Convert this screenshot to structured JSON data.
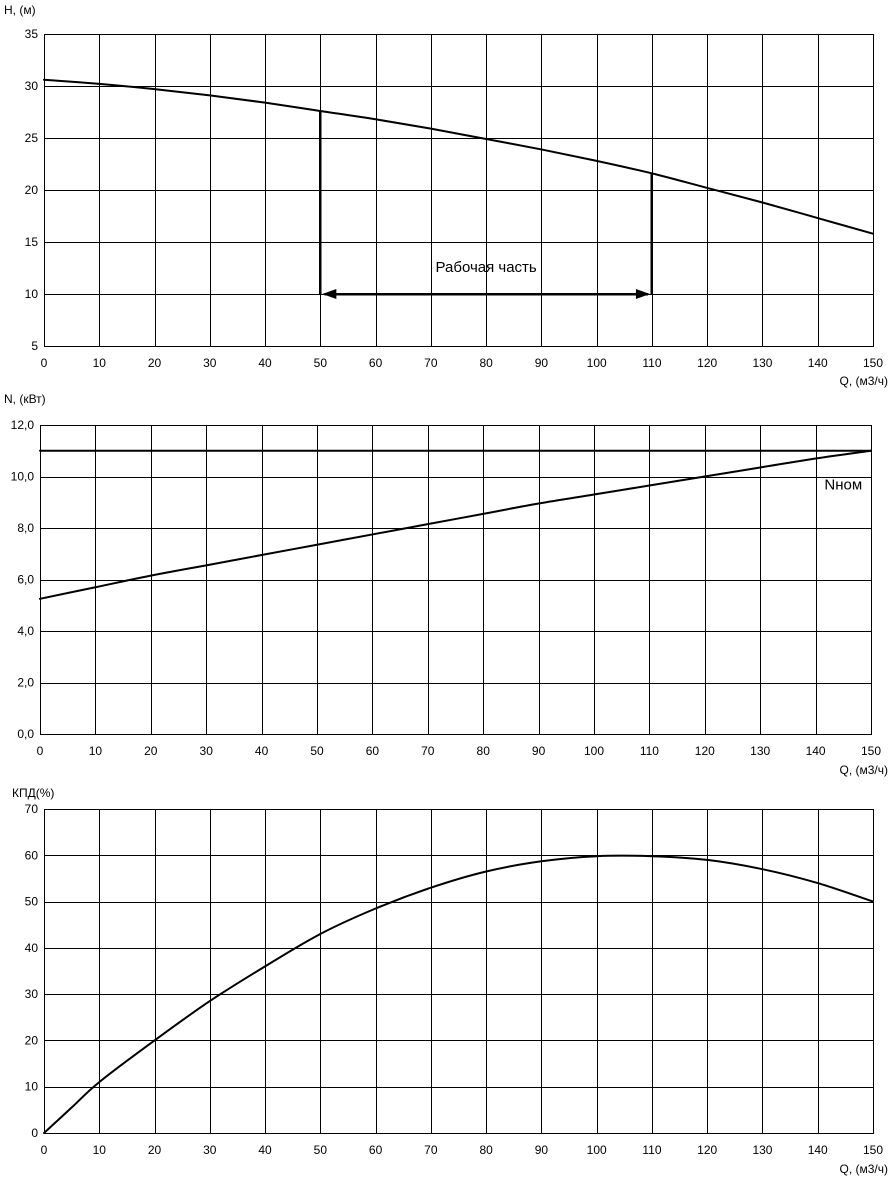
{
  "chart_data": [
    {
      "type": "line",
      "id": "head",
      "xlabel": "Q, (м3/ч)",
      "ylabel": "H, (м)",
      "xlim": [
        0,
        150
      ],
      "ylim": [
        5,
        35
      ],
      "x_ticks": [
        0,
        10,
        20,
        30,
        40,
        50,
        60,
        70,
        80,
        90,
        100,
        110,
        120,
        130,
        140,
        150
      ],
      "y_ticks": [
        5,
        10,
        15,
        20,
        25,
        30,
        35
      ],
      "y_tick_labels": [
        "5",
        "10",
        "15",
        "20",
        "25",
        "30",
        "35"
      ],
      "grid": true,
      "series": [
        {
          "x": [
            0,
            10,
            20,
            30,
            40,
            50,
            60,
            70,
            80,
            90,
            100,
            110,
            120,
            130,
            140,
            150
          ],
          "y": [
            30.6,
            30.2,
            29.7,
            29.1,
            28.4,
            27.6,
            26.8,
            25.9,
            24.9,
            23.9,
            22.8,
            21.6,
            20.2,
            18.8,
            17.3,
            15.8
          ]
        }
      ],
      "working_range": {
        "x_start": 50,
        "x_end": 110,
        "arrow_y": 10,
        "label": "Рабочая часть"
      }
    },
    {
      "type": "line",
      "id": "power",
      "xlabel": "Q, (м3/ч)",
      "ylabel": "N, (кВт)",
      "xlim": [
        0,
        150
      ],
      "ylim": [
        0,
        12
      ],
      "x_ticks": [
        0,
        10,
        20,
        30,
        40,
        50,
        60,
        70,
        80,
        90,
        100,
        110,
        120,
        130,
        140,
        150
      ],
      "y_ticks": [
        0,
        2,
        4,
        6,
        8,
        10,
        12
      ],
      "y_tick_labels": [
        "0,0",
        "2,0",
        "4,0",
        "6,0",
        "8,0",
        "10,0",
        "12,0"
      ],
      "grid": true,
      "series": [
        {
          "x": [
            0,
            10,
            20,
            30,
            40,
            50,
            60,
            70,
            80,
            90,
            100,
            110,
            120,
            130,
            140,
            150
          ],
          "y": [
            5.25,
            5.7,
            6.15,
            6.55,
            6.95,
            7.35,
            7.75,
            8.15,
            8.55,
            8.95,
            9.3,
            9.65,
            10.0,
            10.35,
            10.7,
            11.0
          ]
        },
        {
          "name": "Nном",
          "x": [
            0,
            150
          ],
          "y": [
            11.0,
            11.0
          ]
        }
      ],
      "annotations": [
        {
          "text": "Nном",
          "x": 145,
          "y": 9.5
        }
      ]
    },
    {
      "type": "line",
      "id": "efficiency",
      "xlabel": "Q, (м3/ч)",
      "ylabel": "КПД(%)",
      "xlim": [
        0,
        150
      ],
      "ylim": [
        0,
        70
      ],
      "x_ticks": [
        0,
        10,
        20,
        30,
        40,
        50,
        60,
        70,
        80,
        90,
        100,
        110,
        120,
        130,
        140,
        150
      ],
      "y_ticks": [
        0,
        10,
        20,
        30,
        40,
        50,
        60,
        70
      ],
      "y_tick_labels": [
        "0",
        "10",
        "20",
        "30",
        "40",
        "50",
        "60",
        "70"
      ],
      "grid": true,
      "series": [
        {
          "x": [
            0,
            5,
            10,
            20,
            30,
            40,
            50,
            60,
            70,
            80,
            90,
            100,
            110,
            120,
            130,
            140,
            150
          ],
          "y": [
            0,
            5.5,
            11,
            20,
            28.5,
            36,
            43,
            48.5,
            53,
            56.5,
            58.7,
            59.8,
            59.8,
            59,
            57,
            54,
            50
          ]
        }
      ]
    }
  ]
}
